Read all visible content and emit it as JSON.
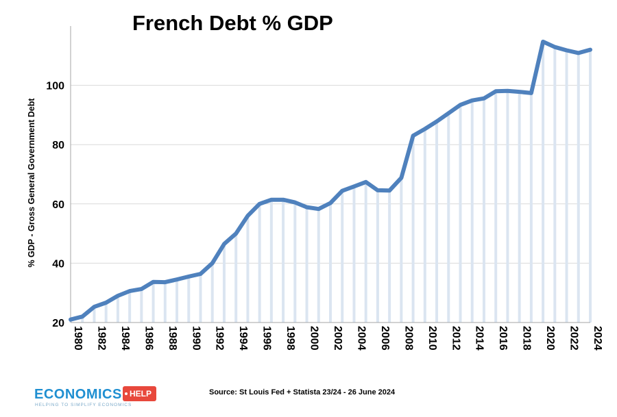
{
  "chart_data": {
    "type": "line",
    "title": "French Debt % GDP",
    "xlabel": "",
    "ylabel": "% GDP - Gross General Government Debt",
    "xlim": [
      1980,
      2024
    ],
    "ylim": [
      20,
      120
    ],
    "y_ticks": [
      20,
      40,
      60,
      80,
      100
    ],
    "x_tick_labels": [
      "1980",
      "1982",
      "1984",
      "1986",
      "1988",
      "1990",
      "1992",
      "1994",
      "1996",
      "1998",
      "2000",
      "2002",
      "2004",
      "2006",
      "2008",
      "2010",
      "2012",
      "2014",
      "2016",
      "2018",
      "2020",
      "2022",
      "2024"
    ],
    "grid": "horizontal",
    "legend": "none",
    "line_color": "#4f81bd",
    "drop_line_color": "#dbe5f1",
    "series": [
      {
        "x": [
          1980,
          1981,
          1982,
          1983,
          1984,
          1985,
          1986,
          1987,
          1988,
          1989,
          1990,
          1991,
          1992,
          1993,
          1994,
          1995,
          1996,
          1997,
          1998,
          1999,
          2000,
          2001,
          2002,
          2003,
          2004,
          2005,
          2006,
          2007,
          2008,
          2009,
          2010,
          2011,
          2012,
          2013,
          2014,
          2015,
          2016,
          2017,
          2018,
          2019,
          2020,
          2021,
          2022,
          2023,
          2024
        ],
        "values": [
          21,
          22,
          25.3,
          26.7,
          29,
          30.6,
          31.3,
          33.7,
          33.6,
          34.5,
          35.5,
          36.4,
          40,
          46.5,
          50,
          56,
          60,
          61.4,
          61.4,
          60.5,
          58.9,
          58.3,
          60.3,
          64.4,
          65.9,
          67.4,
          64.6,
          64.5,
          68.8,
          83,
          85.3,
          87.8,
          90.6,
          93.4,
          94.9,
          95.6,
          98,
          98.1,
          97.8,
          97.4,
          114.7,
          112.9,
          111.8,
          110.9,
          112
        ]
      }
    ],
    "source": "Source: St Louis Fed + Statista 23/24 - 26 June 2024"
  },
  "logo": {
    "main": "ECONOMICS",
    "badge": "HELP",
    "tagline": "HELPING TO SIMPLIFY ECONOMICS",
    "main_color": "#1f8fd1",
    "badge_color": "#e8483c"
  }
}
